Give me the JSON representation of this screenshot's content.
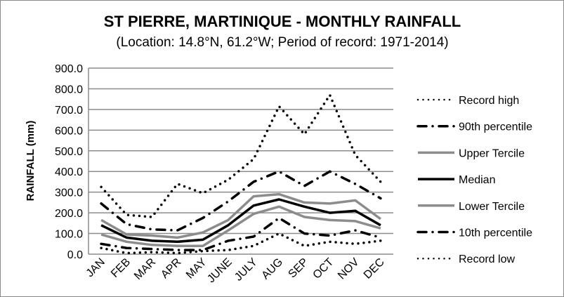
{
  "chart_data": {
    "type": "line",
    "title": "ST PIERRE, MARTINIQUE - MONTHLY RAINFALL",
    "subtitle": "(Location: 14.8°N, 61.2°W; Period of record: 1971-2014)",
    "xlabel": "",
    "ylabel": "RAINFALL (mm)",
    "ylim": [
      0,
      900
    ],
    "yticks": [
      "0.0",
      "100.0",
      "200.0",
      "300.0",
      "400.0",
      "500.0",
      "600.0",
      "700.0",
      "800.0",
      "900.0"
    ],
    "grid": true,
    "legend_position": "right",
    "categories": [
      "JAN",
      "FEB",
      "MAR",
      "APR",
      "MAY",
      "JUNE",
      "JULY",
      "AUG",
      "SEP",
      "OCT",
      "NOV",
      "DEC"
    ],
    "series": [
      {
        "name": "Record high",
        "style": "dotted",
        "color": "#000000",
        "values": [
          325,
          190,
          180,
          340,
          295,
          360,
          460,
          715,
          580,
          770,
          480,
          350
        ]
      },
      {
        "name": "90th percentile",
        "style": "dashdot",
        "color": "#000000",
        "values": [
          245,
          145,
          120,
          115,
          175,
          255,
          350,
          400,
          330,
          400,
          340,
          270
        ]
      },
      {
        "name": "Upper Tercile",
        "style": "solid",
        "color": "#8c8c8c",
        "values": [
          165,
          95,
          90,
          80,
          105,
          165,
          280,
          290,
          250,
          245,
          260,
          170
        ]
      },
      {
        "name": "Median",
        "style": "solid",
        "color": "#000000",
        "values": [
          140,
          80,
          65,
          60,
          70,
          140,
          235,
          265,
          230,
          200,
          210,
          140
        ]
      },
      {
        "name": "Lower Tercile",
        "style": "solid",
        "color": "#8c8c8c",
        "values": [
          95,
          60,
          45,
          40,
          40,
          115,
          195,
          230,
          180,
          165,
          160,
          125
        ]
      },
      {
        "name": "10th percentile",
        "style": "dashdot",
        "color": "#000000",
        "values": [
          50,
          30,
          25,
          20,
          20,
          65,
          85,
          175,
          100,
          90,
          115,
          80
        ]
      },
      {
        "name": "Record low",
        "style": "dotted",
        "color": "#000000",
        "values": [
          30,
          5,
          10,
          5,
          15,
          20,
          40,
          100,
          40,
          60,
          50,
          65
        ]
      }
    ]
  }
}
